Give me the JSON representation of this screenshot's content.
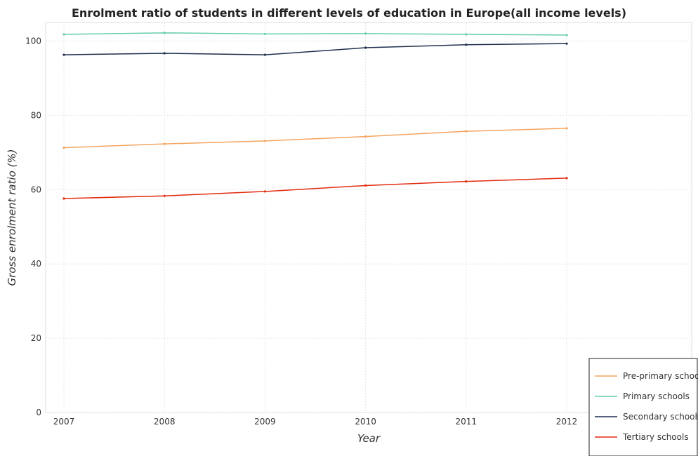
{
  "chart_data": {
    "type": "line",
    "title": "Enrolment ratio of students in different levels of education in Europe(all income levels)",
    "xlabel": "Year",
    "ylabel": "Gross enrolment ratio (%)",
    "categories": [
      "2007",
      "2008",
      "2009",
      "2010",
      "2011",
      "2012"
    ],
    "ylim": [
      0,
      105
    ],
    "yticks": [
      "0",
      "20",
      "40",
      "60",
      "80",
      "100"
    ],
    "grid": true,
    "legend_position": "bottom-right",
    "series": [
      {
        "name": "Pre-primary schools",
        "color": "#f4a460",
        "values": [
          71.3,
          72.3,
          73.1,
          74.3,
          75.7,
          76.5
        ]
      },
      {
        "name": "Primary schools",
        "color": "#66cdaa",
        "values": [
          101.8,
          102.2,
          101.9,
          102.0,
          101.8,
          101.6
        ]
      },
      {
        "name": "Secondary schools",
        "color": "#1f2f4f",
        "values": [
          96.3,
          96.7,
          96.3,
          98.2,
          99.0,
          99.3
        ]
      },
      {
        "name": "Tertiary schools",
        "color": "#e32b0e",
        "values": [
          57.6,
          58.3,
          59.5,
          61.1,
          62.2,
          63.1
        ]
      }
    ]
  }
}
